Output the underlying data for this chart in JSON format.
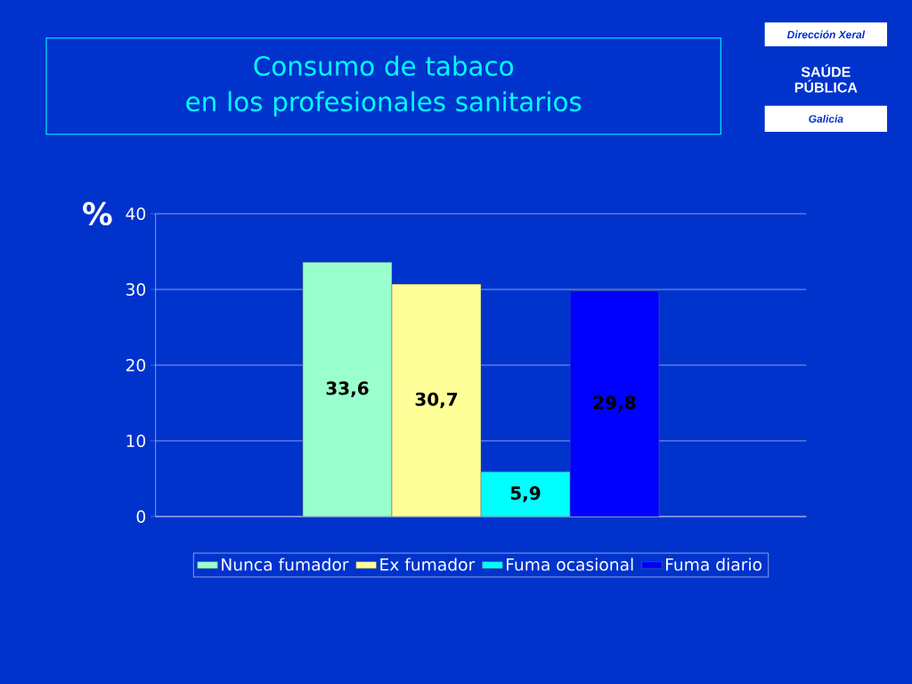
{
  "chart_data": {
    "type": "bar",
    "title": "Consumo de tabaco\nen los profesionales sanitarios",
    "ylabel": "%",
    "categories": [
      null
    ],
    "series": [
      {
        "name": "Nunca fumador",
        "color": "#99ffcc",
        "values": [
          33.6
        ],
        "value_labels": [
          "33,6"
        ]
      },
      {
        "name": "Ex fumador",
        "color": "#ffff99",
        "values": [
          30.7
        ],
        "value_labels": [
          "30,7"
        ]
      },
      {
        "name": "Fuma ocasional",
        "color": "#00ffff",
        "values": [
          5.9
        ],
        "value_labels": [
          "5,9"
        ]
      },
      {
        "name": "Fuma diario",
        "color": "#0000ff",
        "values": [
          29.8
        ],
        "value_labels": [
          "29,8"
        ]
      }
    ],
    "ylim": [
      0,
      40
    ],
    "yticks": [
      0,
      10,
      20,
      30,
      40
    ],
    "grid": "y",
    "legend": "bottom",
    "annotations": [
      "Dirección Xeral",
      "SAÚDE\nPÚBLICA",
      "Galicia"
    ]
  }
}
